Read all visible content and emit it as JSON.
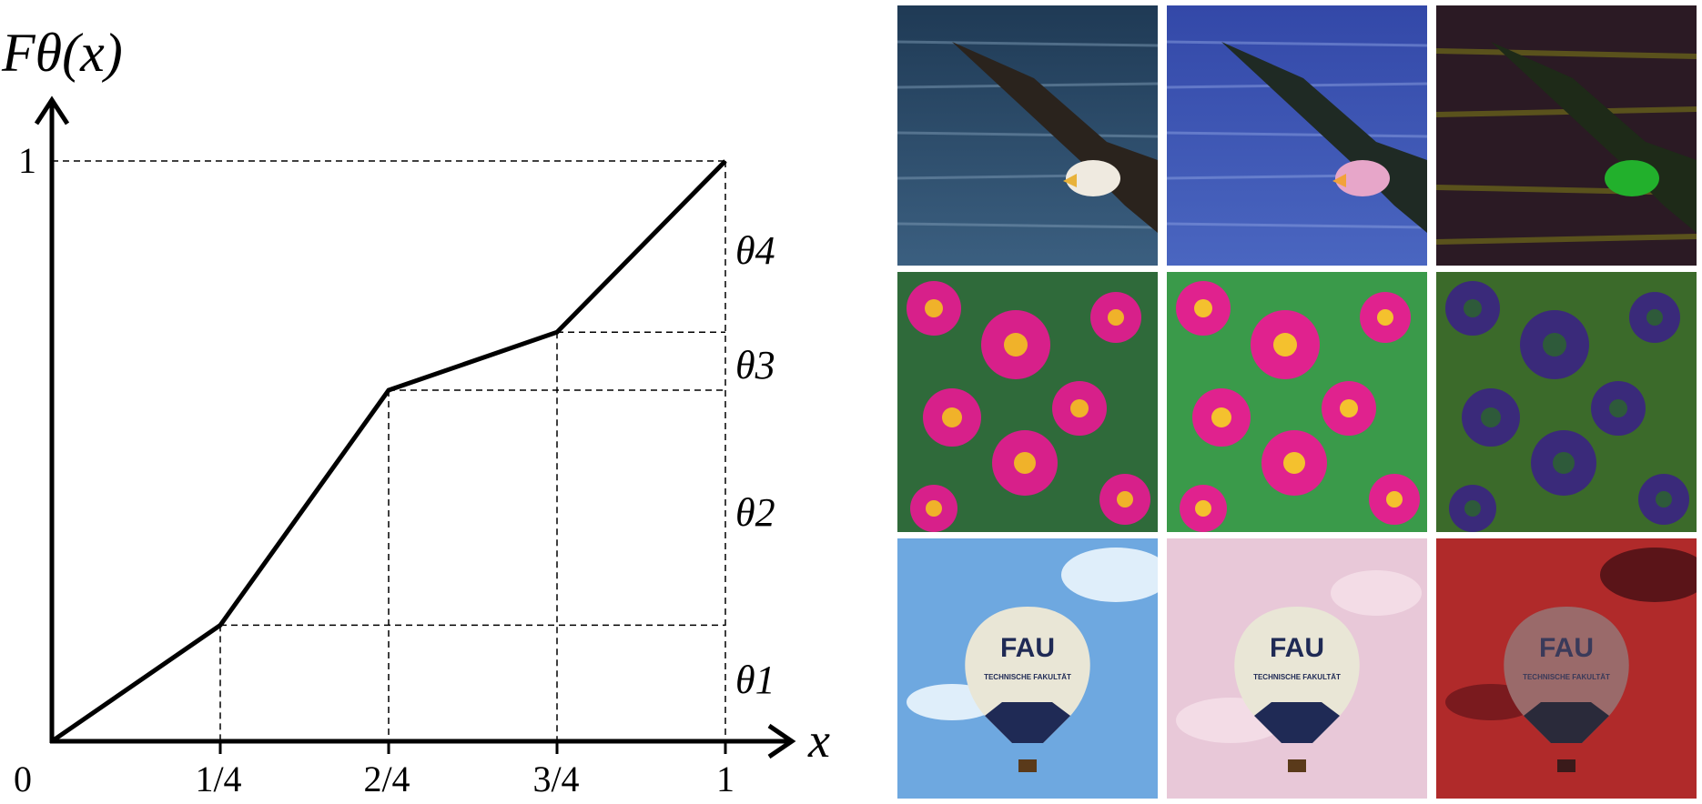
{
  "diagram": {
    "y_axis_label": "Fθ(x)",
    "x_axis_label": "x",
    "origin_label": "0",
    "y_tick_label": "1",
    "x_tick_labels": [
      "1/4",
      "2/4",
      "3/4",
      "1"
    ],
    "segment_labels": [
      "θ1",
      "θ2",
      "θ3",
      "θ4"
    ],
    "curve_points": [
      [
        0,
        0
      ],
      [
        0.25,
        0.2
      ],
      [
        0.5,
        0.605
      ],
      [
        0.75,
        0.705
      ],
      [
        1,
        1
      ]
    ],
    "line_color": "#000000"
  },
  "image_grid": {
    "rows": [
      {
        "subject": "eagle",
        "variants": [
          "original",
          "blue-tinted",
          "dark-inverted"
        ]
      },
      {
        "subject": "flowers",
        "variants": [
          "original",
          "green-tinted",
          "dark-inverted"
        ]
      },
      {
        "subject": "hot-air-balloon",
        "variants": [
          "original",
          "pink-tinted",
          "red-inverted"
        ]
      }
    ],
    "balloon_text": "FAU",
    "balloon_subtext": "TECHNISCHE FAKULTÄT"
  }
}
